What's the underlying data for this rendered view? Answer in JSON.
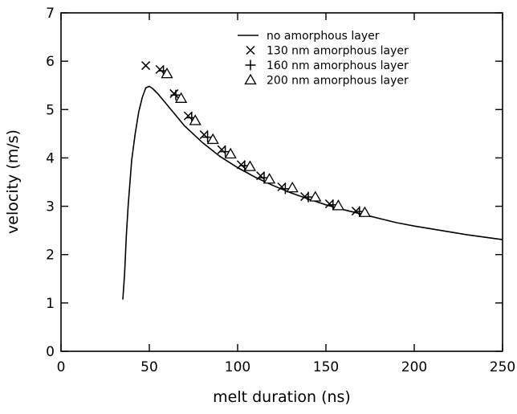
{
  "chart_data": {
    "type": "scatter",
    "title": "",
    "xlabel": "melt duration (ns)",
    "ylabel": "velocity (m/s)",
    "xlim": [
      0,
      250
    ],
    "ylim": [
      0,
      7
    ],
    "x_ticks": [
      0,
      50,
      100,
      150,
      200,
      250
    ],
    "y_ticks": [
      0,
      1,
      2,
      3,
      4,
      5,
      6,
      7
    ],
    "grid": false,
    "legend_position": "top-right",
    "series": [
      {
        "name": "no amorphous layer",
        "kind": "line",
        "marker": "none",
        "x": [
          35,
          36,
          37,
          38,
          40,
          42,
          44,
          46,
          48,
          50,
          52,
          55,
          60,
          65,
          70,
          80,
          90,
          100,
          110,
          120,
          130,
          140,
          150,
          160,
          170,
          180,
          190,
          200,
          210,
          220,
          230,
          240,
          250
        ],
        "y": [
          1.07,
          1.6,
          2.4,
          3.0,
          3.95,
          4.5,
          4.95,
          5.25,
          5.45,
          5.48,
          5.43,
          5.32,
          5.1,
          4.88,
          4.66,
          4.32,
          4.03,
          3.8,
          3.6,
          3.43,
          3.28,
          3.15,
          3.03,
          2.93,
          2.84,
          2.75,
          2.66,
          2.59,
          2.53,
          2.47,
          2.41,
          2.36,
          2.31
        ]
      },
      {
        "name": "130 nm amorphous layer",
        "kind": "scatter",
        "marker": "x",
        "x": [
          48,
          56,
          64,
          72,
          81,
          91,
          102,
          113,
          125,
          138,
          152,
          167
        ],
        "y": [
          5.91,
          5.83,
          5.33,
          4.87,
          4.48,
          4.17,
          3.86,
          3.63,
          3.4,
          3.2,
          3.05,
          2.9
        ]
      },
      {
        "name": "160 nm amorphous layer",
        "kind": "scatter",
        "marker": "+",
        "x": [
          58,
          65,
          74,
          83,
          93,
          104,
          115,
          127,
          140,
          154,
          169
        ],
        "y": [
          5.8,
          5.3,
          4.83,
          4.43,
          4.13,
          3.84,
          3.59,
          3.36,
          3.19,
          3.03,
          2.89
        ]
      },
      {
        "name": "200 nm amorphous layer",
        "kind": "scatter",
        "marker": "triangle",
        "x": [
          60,
          68,
          76,
          86,
          96,
          107,
          118,
          131,
          144,
          157,
          172
        ],
        "y": [
          5.74,
          5.23,
          4.77,
          4.38,
          4.08,
          3.82,
          3.56,
          3.38,
          3.19,
          3.01,
          2.87
        ]
      }
    ]
  }
}
